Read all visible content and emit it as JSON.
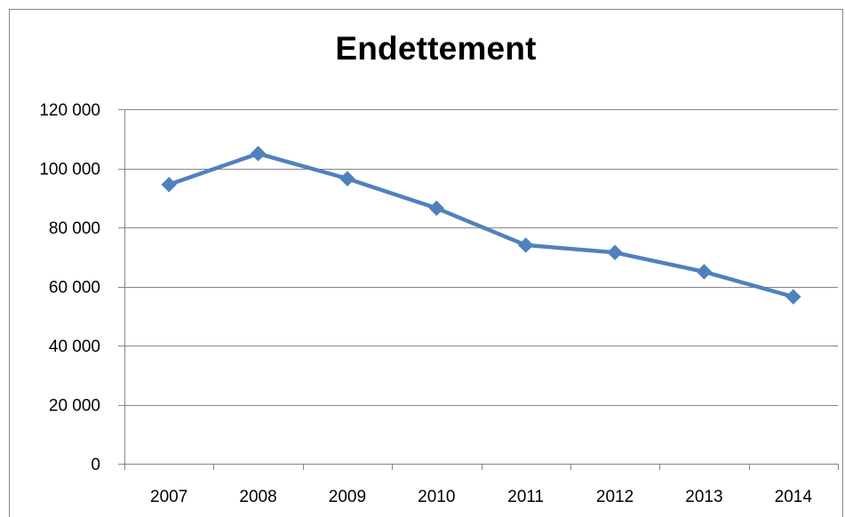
{
  "chart_data": {
    "type": "line",
    "title": "Endettement",
    "xlabel": "",
    "ylabel": "",
    "categories": [
      "2007",
      "2008",
      "2009",
      "2010",
      "2011",
      "2012",
      "2013",
      "2014"
    ],
    "series": [
      {
        "values": [
          94500,
          105000,
          96500,
          86500,
          74000,
          71500,
          65000,
          56500
        ],
        "color": "#4F81BD",
        "marker": "diamond"
      }
    ],
    "ylim": [
      0,
      120000
    ],
    "y_ticks": [
      "0",
      "20 000",
      "40 000",
      "60 000",
      "80 000",
      "100 000",
      "120 000"
    ],
    "y_tick_values": [
      0,
      20000,
      40000,
      60000,
      80000,
      100000,
      120000
    ],
    "grid": "horizontal",
    "legend": "none",
    "colors": {
      "series": "#4F81BD",
      "gridline": "#868686",
      "axis": "#868686"
    }
  }
}
